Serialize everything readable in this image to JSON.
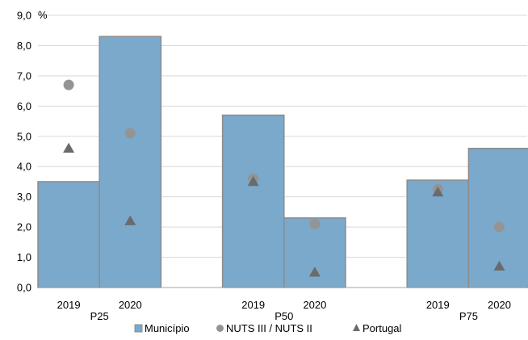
{
  "chart_data": {
    "type": "bar",
    "unit_label": "%",
    "ylim": [
      0,
      9
    ],
    "yticks": [
      "0,0",
      "1,0",
      "2,0",
      "3,0",
      "4,0",
      "5,0",
      "6,0",
      "7,0",
      "8,0",
      "9,0"
    ],
    "grid": true,
    "legend_position": "bottom",
    "groups": [
      {
        "label": "P25",
        "categories": [
          "2019",
          "2020"
        ],
        "municipio": [
          3.5,
          8.3
        ],
        "nuts": [
          6.7,
          5.1
        ],
        "portugal": [
          4.6,
          2.2
        ]
      },
      {
        "label": "P50",
        "categories": [
          "2019",
          "2020"
        ],
        "municipio": [
          5.7,
          2.3
        ],
        "nuts": [
          3.6,
          2.1
        ],
        "portugal": [
          3.5,
          0.5
        ]
      },
      {
        "label": "P75",
        "categories": [
          "2019",
          "2020"
        ],
        "municipio": [
          3.55,
          4.6
        ],
        "nuts": [
          3.25,
          2.0
        ],
        "portugal": [
          3.15,
          0.7
        ]
      }
    ],
    "legend": [
      {
        "key": "municipio",
        "name": "Município",
        "marker": "square",
        "color": "#7aa9cc"
      },
      {
        "key": "nuts",
        "name": "NUTS III / NUTS II",
        "marker": "circle",
        "color": "#949494"
      },
      {
        "key": "portugal",
        "name": "Portugal",
        "marker": "triangle",
        "color": "#6b6b6b"
      }
    ]
  }
}
